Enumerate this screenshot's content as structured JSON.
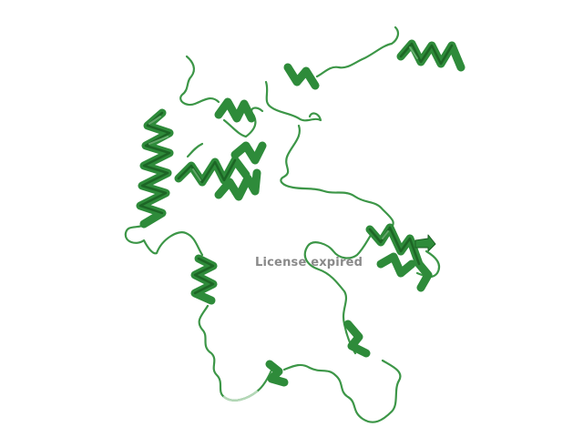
{
  "scene": {
    "background": "#ffffff",
    "ribbon_color": "#2e8b3a",
    "ribbon_dark": "#1a5f22",
    "ribbon_light": "#7fbf85",
    "faded_color": "#b5d8b8"
  },
  "watermark": {
    "text": "License expired"
  }
}
